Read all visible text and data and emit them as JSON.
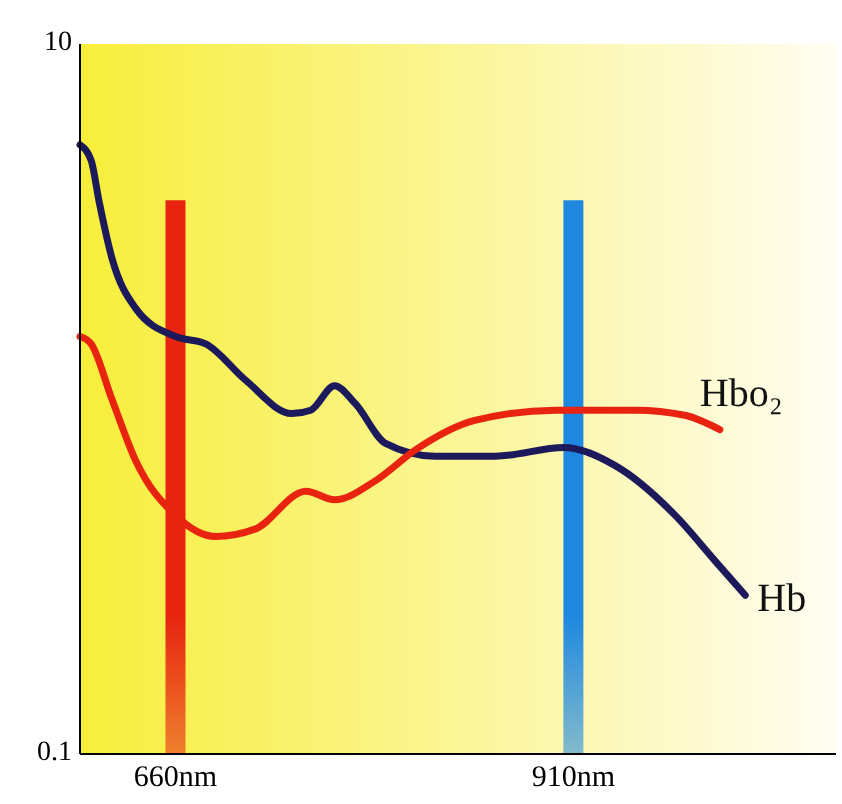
{
  "chart_data": {
    "type": "line",
    "log": "y",
    "xlim": [
      600,
      1075
    ],
    "ylim": [
      0.1,
      10
    ],
    "yticks": [
      0.1,
      10
    ],
    "xticks": [
      {
        "value": 660,
        "label": "660nm"
      },
      {
        "value": 910,
        "label": "910nm"
      }
    ],
    "grid": false,
    "line_style": "solid",
    "series": [
      {
        "name": "Hb",
        "color": "#1c1a5a",
        "x": [
          600,
          607,
          612,
          620,
          635,
          660,
          679,
          704,
          733,
          745,
          760,
          773,
          792,
          823,
          861,
          904,
          936,
          974,
          999,
          1018
        ],
        "values": [
          5.2,
          4.7,
          3.6,
          2.5,
          1.8,
          1.5,
          1.43,
          1.13,
          0.91,
          0.93,
          1.09,
          0.97,
          0.75,
          0.69,
          0.69,
          0.73,
          0.65,
          0.47,
          0.35,
          0.28
        ]
      },
      {
        "name": "Hbo₂",
        "color": "#e8230f",
        "x": [
          600,
          607,
          620,
          635,
          660,
          685,
          710,
          742,
          760,
          786,
          811,
          848,
          899,
          949,
          980,
          1002
        ],
        "values": [
          1.5,
          1.43,
          1.0,
          0.67,
          0.47,
          0.41,
          0.43,
          0.55,
          0.52,
          0.59,
          0.72,
          0.87,
          0.93,
          0.93,
          0.9,
          0.82
        ]
      }
    ],
    "ref_lines": [
      {
        "axis": "x",
        "value": 660,
        "color": "#e8230f"
      },
      {
        "axis": "x",
        "value": 910,
        "color": "#1e88e0"
      }
    ]
  }
}
